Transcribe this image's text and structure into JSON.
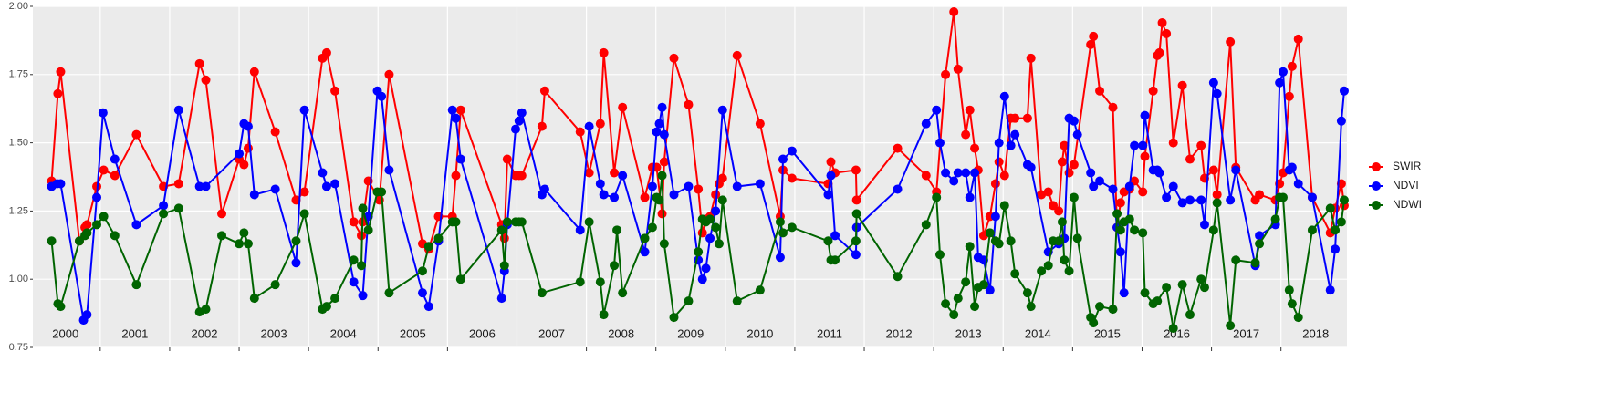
{
  "chart_data": {
    "type": "line",
    "xlim": [
      2000.03,
      2018.95
    ],
    "xticks": [
      2001,
      2002,
      2003,
      2004,
      2005,
      2006,
      2007,
      2008,
      2009,
      2010,
      2011,
      2012,
      2013,
      2014,
      2015,
      2016,
      2017,
      2018
    ],
    "year_labels": [
      "2000",
      "2001",
      "2002",
      "2003",
      "2004",
      "2005",
      "2006",
      "2007",
      "2008",
      "2009",
      "2010",
      "2011",
      "2012",
      "2013",
      "2014",
      "2015",
      "2016",
      "2017",
      "2018"
    ],
    "ylim": [
      0.75,
      2
    ],
    "yticks": [
      0.75,
      {
        "value": 1,
        "label": "1.00"
      },
      1.25,
      {
        "value": 1.5,
        "label": "1.50"
      },
      1.75,
      {
        "value": 2,
        "label": "2.00"
      }
    ],
    "grid": true,
    "legend": "right",
    "series": [
      {
        "name": "SWIR",
        "color": "#ff0000",
        "x": [
          2000.3,
          2000.39,
          2000.43,
          2000.7,
          2000.78,
          2000.81,
          2000.95,
          2001.05,
          2001.21,
          2001.52,
          2001.91,
          2002.13,
          2002.43,
          2002.52,
          2002.75,
          2003.0,
          2003.07,
          2003.13,
          2003.22,
          2003.52,
          2003.82,
          2003.94,
          2004.2,
          2004.26,
          2004.38,
          2004.65,
          2004.76,
          2004.78,
          2004.86,
          2005.02,
          2005.16,
          2005.64,
          2005.73,
          2005.87,
          2006.07,
          2006.12,
          2006.19,
          2006.78,
          2006.82,
          2006.86,
          2006.98,
          2007.03,
          2007.07,
          2007.36,
          2007.4,
          2007.91,
          2008.04,
          2008.2,
          2008.25,
          2008.4,
          2008.52,
          2008.84,
          2008.95,
          2009.01,
          2009.09,
          2009.12,
          2009.26,
          2009.47,
          2009.61,
          2009.67,
          2009.72,
          2009.78,
          2009.86,
          2009.91,
          2009.96,
          2010.17,
          2010.5,
          2010.79,
          2010.83,
          2010.96,
          2011.48,
          2011.52,
          2011.58,
          2011.88,
          2011.89,
          2012.48,
          2012.89,
          2013.04,
          2013.17,
          2013.29,
          2013.35,
          2013.46,
          2013.52,
          2013.59,
          2013.64,
          2013.72,
          2013.81,
          2013.89,
          2013.94,
          2014.02,
          2014.11,
          2014.17,
          2014.35,
          2014.4,
          2014.55,
          2014.65,
          2014.72,
          2014.8,
          2014.85,
          2014.88,
          2014.95,
          2015.02,
          2015.26,
          2015.3,
          2015.39,
          2015.58,
          2015.64,
          2015.69,
          2015.74,
          2015.82,
          2015.89,
          2016.01,
          2016.04,
          2016.16,
          2016.22,
          2016.25,
          2016.29,
          2016.35,
          2016.45,
          2016.58,
          2016.69,
          2016.85,
          2016.9,
          2017.03,
          2017.08,
          2017.27,
          2017.35,
          2017.63,
          2017.69,
          2017.92,
          2017.98,
          2018.03,
          2018.12,
          2018.16,
          2018.25,
          2018.45,
          2018.71,
          2018.78,
          2018.87,
          2018.91
        ],
        "values": [
          1.36,
          1.68,
          1.76,
          1.14,
          1.19,
          1.2,
          1.34,
          1.4,
          1.38,
          1.53,
          1.34,
          1.35,
          1.79,
          1.73,
          1.24,
          1.44,
          1.42,
          1.48,
          1.76,
          1.54,
          1.29,
          1.32,
          1.81,
          1.83,
          1.69,
          1.21,
          1.16,
          1.21,
          1.36,
          1.29,
          1.75,
          1.13,
          1.11,
          1.23,
          1.23,
          1.38,
          1.62,
          1.2,
          1.15,
          1.44,
          1.38,
          1.38,
          1.38,
          1.56,
          1.69,
          1.54,
          1.39,
          1.57,
          1.83,
          1.39,
          1.63,
          1.3,
          1.41,
          1.41,
          1.24,
          1.43,
          1.81,
          1.64,
          1.33,
          1.17,
          1.22,
          1.23,
          1.31,
          1.35,
          1.37,
          1.82,
          1.57,
          1.23,
          1.4,
          1.37,
          1.35,
          1.43,
          1.39,
          1.4,
          1.29,
          1.48,
          1.38,
          1.32,
          1.75,
          1.98,
          1.77,
          1.53,
          1.62,
          1.48,
          1.4,
          1.16,
          1.23,
          1.35,
          1.43,
          1.38,
          1.59,
          1.59,
          1.59,
          1.81,
          1.31,
          1.32,
          1.27,
          1.25,
          1.43,
          1.49,
          1.39,
          1.42,
          1.86,
          1.89,
          1.69,
          1.63,
          1.19,
          1.28,
          1.32,
          1.33,
          1.36,
          1.32,
          1.45,
          1.69,
          1.82,
          1.83,
          1.94,
          1.9,
          1.5,
          1.71,
          1.44,
          1.49,
          1.37,
          1.4,
          1.31,
          1.87,
          1.41,
          1.29,
          1.31,
          1.29,
          1.35,
          1.39,
          1.67,
          1.78,
          1.88,
          1.3,
          1.17,
          1.26,
          1.35,
          1.27
        ]
      },
      {
        "name": "NDVI",
        "color": "#0000ff",
        "x": [
          2000.3,
          2000.38,
          2000.43,
          2000.76,
          2000.81,
          2000.95,
          2001.04,
          2001.21,
          2001.52,
          2001.91,
          2002.13,
          2002.43,
          2002.52,
          2003.0,
          2003.07,
          2003.13,
          2003.22,
          2003.52,
          2003.82,
          2003.94,
          2004.2,
          2004.26,
          2004.38,
          2004.65,
          2004.78,
          2004.86,
          2004.99,
          2005.05,
          2005.16,
          2005.64,
          2005.73,
          2005.87,
          2006.07,
          2006.12,
          2006.19,
          2006.78,
          2006.82,
          2006.86,
          2006.98,
          2007.03,
          2007.07,
          2007.36,
          2007.4,
          2007.91,
          2008.04,
          2008.2,
          2008.25,
          2008.4,
          2008.52,
          2008.84,
          2008.95,
          2009.01,
          2009.05,
          2009.09,
          2009.12,
          2009.26,
          2009.47,
          2009.61,
          2009.67,
          2009.72,
          2009.78,
          2009.86,
          2009.96,
          2010.17,
          2010.5,
          2010.79,
          2010.83,
          2010.96,
          2011.48,
          2011.52,
          2011.58,
          2011.88,
          2011.89,
          2012.48,
          2012.89,
          2013.04,
          2013.09,
          2013.17,
          2013.29,
          2013.35,
          2013.46,
          2013.52,
          2013.59,
          2013.64,
          2013.72,
          2013.81,
          2013.89,
          2013.94,
          2014.02,
          2014.11,
          2014.17,
          2014.35,
          2014.4,
          2014.65,
          2014.8,
          2014.88,
          2014.95,
          2015.02,
          2015.07,
          2015.26,
          2015.3,
          2015.39,
          2015.58,
          2015.64,
          2015.69,
          2015.74,
          2015.82,
          2015.89,
          2016.01,
          2016.04,
          2016.16,
          2016.22,
          2016.25,
          2016.35,
          2016.45,
          2016.58,
          2016.69,
          2016.85,
          2016.9,
          2017.03,
          2017.08,
          2017.27,
          2017.35,
          2017.63,
          2017.69,
          2017.92,
          2017.98,
          2018.03,
          2018.12,
          2018.16,
          2018.25,
          2018.45,
          2018.71,
          2018.78,
          2018.87,
          2018.91
        ],
        "values": [
          1.34,
          1.35,
          1.35,
          0.85,
          0.87,
          1.3,
          1.61,
          1.44,
          1.2,
          1.27,
          1.62,
          1.34,
          1.34,
          1.46,
          1.57,
          1.56,
          1.31,
          1.33,
          1.06,
          1.62,
          1.39,
          1.34,
          1.35,
          0.99,
          0.94,
          1.23,
          1.69,
          1.67,
          1.4,
          0.95,
          0.9,
          1.14,
          1.62,
          1.59,
          1.44,
          0.93,
          1.03,
          1.2,
          1.55,
          1.58,
          1.61,
          1.31,
          1.33,
          1.18,
          1.56,
          1.35,
          1.31,
          1.3,
          1.38,
          1.1,
          1.34,
          1.54,
          1.57,
          1.63,
          1.53,
          1.31,
          1.34,
          1.07,
          1.0,
          1.04,
          1.15,
          1.25,
          1.62,
          1.34,
          1.35,
          1.08,
          1.44,
          1.47,
          1.31,
          1.38,
          1.16,
          1.09,
          1.19,
          1.33,
          1.57,
          1.62,
          1.5,
          1.39,
          1.36,
          1.39,
          1.39,
          1.3,
          1.39,
          1.08,
          1.07,
          0.96,
          1.23,
          1.5,
          1.67,
          1.49,
          1.53,
          1.42,
          1.41,
          1.1,
          1.13,
          1.15,
          1.59,
          1.58,
          1.53,
          1.39,
          1.34,
          1.36,
          1.33,
          1.19,
          1.1,
          0.95,
          1.34,
          1.49,
          1.49,
          1.6,
          1.4,
          1.4,
          1.39,
          1.3,
          1.34,
          1.28,
          1.29,
          1.29,
          1.2,
          1.72,
          1.68,
          1.29,
          1.4,
          1.05,
          1.16,
          1.2,
          1.72,
          1.76,
          1.4,
          1.41,
          1.35,
          1.3,
          0.96,
          1.11,
          1.58,
          1.69
        ]
      },
      {
        "name": "NDWI",
        "color": "#006400",
        "x": [
          2000.3,
          2000.39,
          2000.43,
          2000.7,
          2000.78,
          2000.81,
          2000.95,
          2001.05,
          2001.21,
          2001.52,
          2001.91,
          2002.13,
          2002.43,
          2002.52,
          2002.75,
          2003.0,
          2003.07,
          2003.13,
          2003.22,
          2003.52,
          2003.82,
          2003.94,
          2004.2,
          2004.26,
          2004.38,
          2004.65,
          2004.76,
          2004.78,
          2004.86,
          2004.99,
          2005.05,
          2005.16,
          2005.64,
          2005.73,
          2005.87,
          2006.07,
          2006.12,
          2006.19,
          2006.78,
          2006.82,
          2006.86,
          2006.98,
          2007.03,
          2007.07,
          2007.36,
          2007.91,
          2008.04,
          2008.2,
          2008.25,
          2008.4,
          2008.44,
          2008.52,
          2008.84,
          2008.95,
          2009.01,
          2009.05,
          2009.09,
          2009.12,
          2009.26,
          2009.47,
          2009.61,
          2009.67,
          2009.72,
          2009.78,
          2009.86,
          2009.91,
          2009.96,
          2010.17,
          2010.5,
          2010.79,
          2010.83,
          2010.96,
          2011.48,
          2011.52,
          2011.58,
          2011.88,
          2011.89,
          2012.48,
          2012.89,
          2013.04,
          2013.09,
          2013.17,
          2013.29,
          2013.35,
          2013.46,
          2013.52,
          2013.59,
          2013.64,
          2013.72,
          2013.81,
          2013.89,
          2013.94,
          2014.02,
          2014.11,
          2014.17,
          2014.35,
          2014.4,
          2014.55,
          2014.65,
          2014.72,
          2014.8,
          2014.85,
          2014.88,
          2014.95,
          2015.02,
          2015.07,
          2015.26,
          2015.3,
          2015.39,
          2015.58,
          2015.64,
          2015.69,
          2015.74,
          2015.82,
          2015.89,
          2016.01,
          2016.04,
          2016.16,
          2016.22,
          2016.35,
          2016.45,
          2016.58,
          2016.69,
          2016.85,
          2016.9,
          2017.03,
          2017.08,
          2017.27,
          2017.35,
          2017.63,
          2017.69,
          2017.92,
          2017.98,
          2018.03,
          2018.12,
          2018.16,
          2018.25,
          2018.45,
          2018.71,
          2018.78,
          2018.87,
          2018.91
        ],
        "values": [
          1.14,
          0.91,
          0.9,
          1.14,
          1.16,
          1.17,
          1.2,
          1.23,
          1.16,
          0.98,
          1.24,
          1.26,
          0.88,
          0.89,
          1.16,
          1.13,
          1.17,
          1.13,
          0.93,
          0.98,
          1.14,
          1.24,
          0.89,
          0.9,
          0.93,
          1.07,
          1.05,
          1.26,
          1.18,
          1.32,
          1.32,
          0.95,
          1.03,
          1.12,
          1.15,
          1.21,
          1.21,
          1.0,
          1.18,
          1.05,
          1.21,
          1.21,
          1.21,
          1.21,
          0.95,
          0.99,
          1.21,
          0.99,
          0.87,
          1.05,
          1.18,
          0.95,
          1.15,
          1.19,
          1.3,
          1.29,
          1.38,
          1.13,
          0.86,
          0.92,
          1.1,
          1.22,
          1.21,
          1.22,
          1.19,
          1.13,
          1.29,
          0.92,
          0.96,
          1.21,
          1.17,
          1.19,
          1.14,
          1.07,
          1.07,
          1.14,
          1.24,
          1.01,
          1.2,
          1.3,
          1.09,
          0.91,
          0.87,
          0.93,
          0.99,
          1.12,
          0.9,
          0.97,
          0.98,
          1.17,
          1.14,
          1.13,
          1.27,
          1.14,
          1.02,
          0.95,
          0.9,
          1.03,
          1.05,
          1.14,
          1.14,
          1.21,
          1.07,
          1.03,
          1.3,
          1.15,
          0.86,
          0.84,
          0.9,
          0.89,
          1.24,
          1.18,
          1.21,
          1.22,
          1.18,
          1.17,
          0.95,
          0.91,
          0.92,
          0.97,
          0.82,
          0.98,
          0.87,
          1.0,
          0.97,
          1.18,
          1.28,
          0.83,
          1.07,
          1.06,
          1.13,
          1.22,
          1.3,
          1.3,
          0.96,
          0.91,
          0.86,
          1.18,
          1.26,
          1.18,
          1.21,
          1.29
        ]
      }
    ]
  }
}
